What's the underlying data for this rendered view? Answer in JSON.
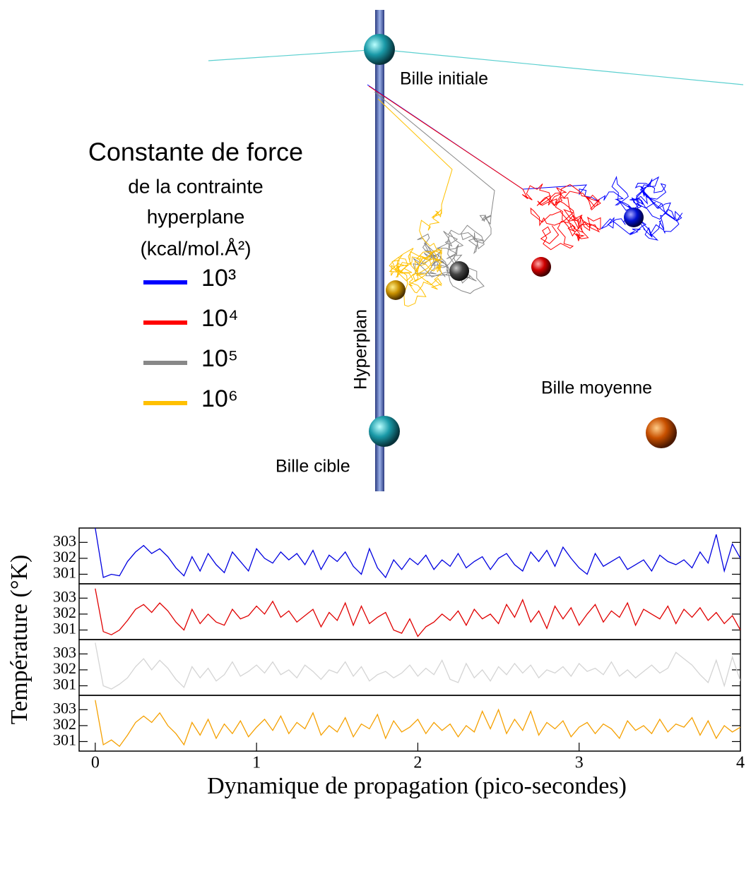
{
  "diagram": {
    "labels": {
      "initial": "Bille initiale",
      "hyperplane": "Hyperplan",
      "mean": "Bille moyenne",
      "target": "Bille cible"
    },
    "legend": {
      "title": [
        "Constante de force",
        "de la contrainte",
        "hyperplane",
        "(kcal/mol.Å²)"
      ],
      "items": [
        {
          "label": "10³",
          "color": "#0000ff"
        },
        {
          "label": "10⁴",
          "color": "#ff0000"
        },
        {
          "label": "10⁵",
          "color": "#888888"
        },
        {
          "label": "10⁶",
          "color": "#ffc000"
        }
      ]
    }
  },
  "chart_data": [
    {
      "type": "line",
      "ylabel": "Température (°K)",
      "xlim": [
        -0.1,
        4
      ],
      "ylim": [
        300.4,
        303.9
      ],
      "yticks": [
        301,
        302,
        303
      ],
      "x": [
        0,
        0.05,
        0.1,
        0.15,
        0.2,
        0.25,
        0.3,
        0.35,
        0.4,
        0.45,
        0.5,
        0.55,
        0.6,
        0.65,
        0.7,
        0.75,
        0.8,
        0.85,
        0.9,
        0.95,
        1,
        1.05,
        1.1,
        1.15,
        1.2,
        1.25,
        1.3,
        1.35,
        1.4,
        1.45,
        1.5,
        1.55,
        1.6,
        1.65,
        1.7,
        1.75,
        1.8,
        1.85,
        1.9,
        1.95,
        2,
        2.05,
        2.1,
        2.15,
        2.2,
        2.25,
        2.3,
        2.35,
        2.4,
        2.45,
        2.5,
        2.55,
        2.6,
        2.65,
        2.7,
        2.75,
        2.8,
        2.85,
        2.9,
        2.95,
        3,
        3.05,
        3.1,
        3.15,
        3.2,
        3.25,
        3.3,
        3.35,
        3.4,
        3.45,
        3.5,
        3.55,
        3.6,
        3.65,
        3.7,
        3.75,
        3.8,
        3.85,
        3.9,
        3.95,
        4
      ],
      "series": [
        {
          "color": "#0000e0",
          "values": [
            303.9,
            300.8,
            301.0,
            300.9,
            301.8,
            302.4,
            302.8,
            302.3,
            302.6,
            302.1,
            301.4,
            300.9,
            302.1,
            301.2,
            302.3,
            301.6,
            301.1,
            302.4,
            301.8,
            301.2,
            302.6,
            302.0,
            301.7,
            302.4,
            301.9,
            302.3,
            301.6,
            302.5,
            301.3,
            302.2,
            301.8,
            302.4,
            301.5,
            301.0,
            302.6,
            301.4,
            300.8,
            301.9,
            301.3,
            302.0,
            301.6,
            302.2,
            301.3,
            301.9,
            301.5,
            302.3,
            301.4,
            301.8,
            302.1,
            301.3,
            302.0,
            302.3,
            301.6,
            301.2,
            302.4,
            301.8,
            302.5,
            301.5,
            302.7,
            302.0,
            301.4,
            301.0,
            302.3,
            301.5,
            301.8,
            302.1,
            301.3,
            301.6,
            301.9,
            301.2,
            302.2,
            301.8,
            301.6,
            301.9,
            301.4,
            302.4,
            301.7,
            303.5,
            301.2,
            302.9,
            302.0
          ]
        }
      ]
    },
    {
      "type": "line",
      "xlim": [
        -0.1,
        4
      ],
      "ylim": [
        300.4,
        303.9
      ],
      "yticks": [
        301,
        302,
        303
      ],
      "x": [
        0,
        0.05,
        0.1,
        0.15,
        0.2,
        0.25,
        0.3,
        0.35,
        0.4,
        0.45,
        0.5,
        0.55,
        0.6,
        0.65,
        0.7,
        0.75,
        0.8,
        0.85,
        0.9,
        0.95,
        1,
        1.05,
        1.1,
        1.15,
        1.2,
        1.25,
        1.3,
        1.35,
        1.4,
        1.45,
        1.5,
        1.55,
        1.6,
        1.65,
        1.7,
        1.75,
        1.8,
        1.85,
        1.9,
        1.95,
        2,
        2.05,
        2.1,
        2.15,
        2.2,
        2.25,
        2.3,
        2.35,
        2.4,
        2.45,
        2.5,
        2.55,
        2.6,
        2.65,
        2.7,
        2.75,
        2.8,
        2.85,
        2.9,
        2.95,
        3,
        3.05,
        3.1,
        3.15,
        3.2,
        3.25,
        3.3,
        3.35,
        3.4,
        3.45,
        3.5,
        3.55,
        3.6,
        3.65,
        3.7,
        3.75,
        3.8,
        3.85,
        3.9,
        3.95,
        4
      ],
      "series": [
        {
          "color": "#e00000",
          "values": [
            303.6,
            300.9,
            300.7,
            301.0,
            301.6,
            302.3,
            302.6,
            302.1,
            302.7,
            302.2,
            301.5,
            301.0,
            302.3,
            301.4,
            302.0,
            301.5,
            301.3,
            302.3,
            301.7,
            301.9,
            302.5,
            302.0,
            302.8,
            301.8,
            302.2,
            301.5,
            301.9,
            302.3,
            301.2,
            302.1,
            301.6,
            302.7,
            301.3,
            302.5,
            301.4,
            301.8,
            302.1,
            301.0,
            300.8,
            301.7,
            300.6,
            301.2,
            301.5,
            302.0,
            301.6,
            302.2,
            301.3,
            302.3,
            301.7,
            302.0,
            301.4,
            302.6,
            301.8,
            302.9,
            301.5,
            302.2,
            301.1,
            302.5,
            301.7,
            302.4,
            301.3,
            302.0,
            302.6,
            301.5,
            302.2,
            301.8,
            302.7,
            301.3,
            302.3,
            302.0,
            301.7,
            302.5,
            301.4,
            302.3,
            301.8,
            302.4,
            301.6,
            302.1,
            301.4,
            301.9,
            301.0
          ]
        }
      ]
    },
    {
      "type": "line",
      "xlim": [
        -0.1,
        4
      ],
      "ylim": [
        300.4,
        303.9
      ],
      "yticks": [
        301,
        302,
        303
      ],
      "x": [
        0,
        0.05,
        0.1,
        0.15,
        0.2,
        0.25,
        0.3,
        0.35,
        0.4,
        0.45,
        0.5,
        0.55,
        0.6,
        0.65,
        0.7,
        0.75,
        0.8,
        0.85,
        0.9,
        0.95,
        1,
        1.05,
        1.1,
        1.15,
        1.2,
        1.25,
        1.3,
        1.35,
        1.4,
        1.45,
        1.5,
        1.55,
        1.6,
        1.65,
        1.7,
        1.75,
        1.8,
        1.85,
        1.9,
        1.95,
        2,
        2.05,
        2.1,
        2.15,
        2.2,
        2.25,
        2.3,
        2.35,
        2.4,
        2.45,
        2.5,
        2.55,
        2.6,
        2.65,
        2.7,
        2.75,
        2.8,
        2.85,
        2.9,
        2.95,
        3,
        3.05,
        3.1,
        3.15,
        3.2,
        3.25,
        3.3,
        3.35,
        3.4,
        3.45,
        3.5,
        3.55,
        3.6,
        3.65,
        3.7,
        3.75,
        3.8,
        3.85,
        3.9,
        3.95,
        4
      ],
      "series": [
        {
          "color": "#d4d4d4",
          "values": [
            303.7,
            301.0,
            300.8,
            301.1,
            301.5,
            302.2,
            302.7,
            302.0,
            302.6,
            302.1,
            301.4,
            300.9,
            302.2,
            301.5,
            302.1,
            301.3,
            301.7,
            302.5,
            301.6,
            301.9,
            302.3,
            301.8,
            302.5,
            301.7,
            302.0,
            301.5,
            302.3,
            301.9,
            301.4,
            302.0,
            301.8,
            302.5,
            301.6,
            302.2,
            301.3,
            301.7,
            301.9,
            301.5,
            301.8,
            302.3,
            301.6,
            302.1,
            301.7,
            302.6,
            301.4,
            301.2,
            302.4,
            301.5,
            302.0,
            301.3,
            302.2,
            301.7,
            302.4,
            301.8,
            302.3,
            301.5,
            302.0,
            301.8,
            302.2,
            301.6,
            302.4,
            301.9,
            302.1,
            301.7,
            302.5,
            301.6,
            302.0,
            301.5,
            301.9,
            302.3,
            301.8,
            302.1,
            303.1,
            302.7,
            302.3,
            301.7,
            301.2,
            302.6,
            301.0,
            302.8,
            301.3
          ]
        }
      ]
    },
    {
      "type": "line",
      "xlabel": "Dynamique de propagation (pico-secondes)",
      "xlim": [
        -0.1,
        4
      ],
      "ylim": [
        300.4,
        303.9
      ],
      "yticks": [
        301,
        302,
        303
      ],
      "xticks": [
        0,
        1,
        2,
        3,
        4
      ],
      "x": [
        0,
        0.05,
        0.1,
        0.15,
        0.2,
        0.25,
        0.3,
        0.35,
        0.4,
        0.45,
        0.5,
        0.55,
        0.6,
        0.65,
        0.7,
        0.75,
        0.8,
        0.85,
        0.9,
        0.95,
        1,
        1.05,
        1.1,
        1.15,
        1.2,
        1.25,
        1.3,
        1.35,
        1.4,
        1.45,
        1.5,
        1.55,
        1.6,
        1.65,
        1.7,
        1.75,
        1.8,
        1.85,
        1.9,
        1.95,
        2,
        2.05,
        2.1,
        2.15,
        2.2,
        2.25,
        2.3,
        2.35,
        2.4,
        2.45,
        2.5,
        2.55,
        2.6,
        2.65,
        2.7,
        2.75,
        2.8,
        2.85,
        2.9,
        2.95,
        3,
        3.05,
        3.1,
        3.15,
        3.2,
        3.25,
        3.3,
        3.35,
        3.4,
        3.45,
        3.5,
        3.55,
        3.6,
        3.65,
        3.7,
        3.75,
        3.8,
        3.85,
        3.9,
        3.95,
        4
      ],
      "series": [
        {
          "color": "#f5a000",
          "values": [
            303.6,
            300.8,
            301.1,
            300.7,
            301.4,
            302.2,
            302.6,
            302.2,
            302.8,
            302.0,
            301.5,
            300.8,
            302.2,
            301.4,
            302.4,
            301.2,
            302.1,
            301.5,
            302.3,
            301.3,
            301.9,
            302.4,
            301.7,
            302.6,
            301.5,
            302.2,
            301.8,
            302.8,
            301.4,
            302.0,
            301.6,
            302.5,
            301.3,
            302.1,
            301.8,
            302.7,
            301.2,
            302.3,
            301.6,
            301.9,
            302.4,
            301.5,
            302.2,
            301.7,
            302.1,
            301.3,
            302.0,
            301.6,
            302.9,
            301.8,
            303.0,
            301.5,
            302.4,
            301.7,
            302.9,
            301.4,
            302.2,
            301.8,
            302.3,
            301.3,
            301.9,
            302.2,
            301.5,
            302.1,
            301.8,
            301.2,
            302.3,
            301.7,
            302.0,
            301.5,
            302.4,
            301.6,
            302.1,
            301.9,
            302.5,
            301.4,
            302.3,
            301.2,
            302.0,
            301.6,
            301.9
          ]
        }
      ]
    }
  ]
}
